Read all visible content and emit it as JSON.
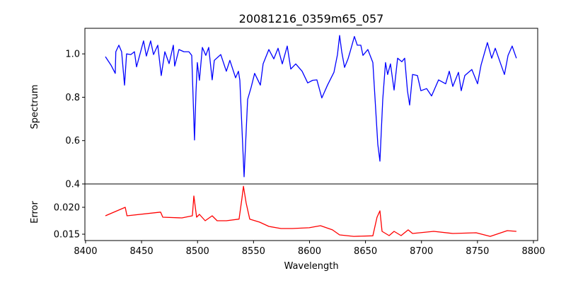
{
  "chart_data": [
    {
      "type": "line",
      "title": "20081216_0359m65_057",
      "xlabel": "",
      "ylabel": "Spectrum",
      "xlim": [
        8399.4,
        8803.8
      ],
      "ylim": [
        0.4,
        1.118
      ],
      "yticks": [
        "0.4",
        "0.6",
        "0.8",
        "1.0"
      ],
      "ytick_values": [
        0.4,
        0.6,
        0.8,
        1.0
      ],
      "color": "#0000ff",
      "series": [
        {
          "name": "Spectrum",
          "x": [
            8417.7,
            8422.7,
            8426.5,
            8427,
            8429.7,
            8432.2,
            8434.8,
            8436.6,
            8440.4,
            8443.6,
            8445.5,
            8451.8,
            8454.3,
            8458.1,
            8460.7,
            8464.5,
            8467.6,
            8470.8,
            8474.6,
            8478.4,
            8479.6,
            8483.4,
            8487.8,
            8492.3,
            8494.8,
            8497.3,
            8498.6,
            8499.8,
            8501.7,
            8504.3,
            8507.4,
            8510,
            8513.1,
            8515,
            8520.7,
            8525.7,
            8528.9,
            8534,
            8536.5,
            8537.8,
            8541.6,
            8544.7,
            8547.9,
            8551,
            8556.1,
            8558.6,
            8563.7,
            8568.1,
            8571.9,
            8575.7,
            8580.1,
            8583.3,
            8587.7,
            8593.4,
            8598.4,
            8602.8,
            8606.6,
            8611,
            8616.1,
            8621.8,
            8625,
            8626.9,
            8628.8,
            8631.3,
            8634.4,
            8636.3,
            8640.1,
            8642.7,
            8645.8,
            8647.7,
            8652.1,
            8656.6,
            8661,
            8662.9,
            8665.4,
            8667.9,
            8669.8,
            8672.3,
            8675.5,
            8678.7,
            8682.5,
            8685,
            8687.5,
            8689.4,
            8692,
            8696.4,
            8699.5,
            8704.6,
            8709,
            8715.3,
            8721.6,
            8724.8,
            8728,
            8733,
            8735.5,
            8738.7,
            8745,
            8750.1,
            8753.2,
            8758.9,
            8762.7,
            8765.9,
            8769,
            8774.1,
            8777.3,
            8781,
            8784.8
          ],
          "y": [
            0.987,
            0.948,
            0.91,
            1.01,
            1.04,
            1.01,
            0.856,
            1.0,
            0.997,
            1.01,
            0.94,
            1.06,
            0.99,
            1.06,
            0.997,
            1.04,
            0.9,
            1.01,
            0.955,
            1.04,
            0.944,
            1.02,
            1.01,
            1.01,
            0.993,
            0.603,
            0.823,
            0.96,
            0.878,
            1.03,
            0.993,
            1.03,
            0.88,
            0.97,
            0.997,
            0.92,
            0.97,
            0.89,
            0.92,
            0.878,
            0.433,
            0.79,
            0.846,
            0.91,
            0.856,
            0.954,
            1.02,
            0.977,
            1.026,
            0.954,
            1.036,
            0.93,
            0.954,
            0.92,
            0.866,
            0.878,
            0.88,
            0.797,
            0.856,
            0.915,
            0.997,
            1.085,
            1.01,
            0.938,
            0.977,
            1.01,
            1.08,
            1.04,
            1.04,
            0.993,
            1.02,
            0.96,
            0.583,
            0.505,
            0.79,
            0.96,
            0.905,
            0.954,
            0.833,
            0.98,
            0.964,
            0.98,
            0.83,
            0.764,
            0.905,
            0.9,
            0.83,
            0.84,
            0.806,
            0.88,
            0.862,
            0.92,
            0.85,
            0.915,
            0.83,
            0.9,
            0.928,
            0.862,
            0.948,
            1.052,
            0.98,
            1.026,
            0.98,
            0.905,
            0.993,
            1.036,
            0.98
          ]
        }
      ]
    },
    {
      "type": "line",
      "xlabel": "Wavelength",
      "ylabel": "Error",
      "xlim": [
        8399.4,
        8803.8
      ],
      "ylim": [
        0.01382,
        0.02434
      ],
      "xticks": [
        "8400",
        "8450",
        "8500",
        "8550",
        "8600",
        "8650",
        "8700",
        "8750",
        "8800"
      ],
      "xtick_values": [
        8400,
        8450,
        8500,
        8550,
        8600,
        8650,
        8700,
        8750,
        8800
      ],
      "yticks": [
        "0.015",
        "0.020"
      ],
      "ytick_values": [
        0.015,
        0.02
      ],
      "color": "#ff0000",
      "series": [
        {
          "name": "Error",
          "x": [
            8417.7,
            8435.4,
            8437,
            8467,
            8469,
            8486,
            8495.4,
            8496.7,
            8499.2,
            8501.7,
            8506.8,
            8513.1,
            8517.5,
            8525.7,
            8537.1,
            8539.7,
            8541,
            8543.4,
            8546.6,
            8555.5,
            8563.7,
            8574.5,
            8584.5,
            8599.7,
            8609.8,
            8620.5,
            8626.9,
            8639.5,
            8656.6,
            8660.3,
            8662.9,
            8664.8,
            8671.1,
            8675.5,
            8681.8,
            8688.1,
            8692,
            8711,
            8728,
            8748.8,
            8761.4,
            8776.6,
            8784.8
          ],
          "y": [
            0.01842,
            0.02,
            0.01842,
            0.0191,
            0.01816,
            0.01803,
            0.01842,
            0.0221,
            0.01816,
            0.01868,
            0.0175,
            0.01842,
            0.0175,
            0.0175,
            0.0178,
            0.0217,
            0.0239,
            0.0208,
            0.0178,
            0.01724,
            0.01645,
            0.01605,
            0.01605,
            0.0162,
            0.01658,
            0.0158,
            0.01487,
            0.0146,
            0.0147,
            0.01816,
            0.01934,
            0.01553,
            0.01474,
            0.01553,
            0.01474,
            0.0158,
            0.01513,
            0.01553,
            0.01513,
            0.01526,
            0.0146,
            0.01566,
            0.01553
          ]
        }
      ]
    }
  ]
}
